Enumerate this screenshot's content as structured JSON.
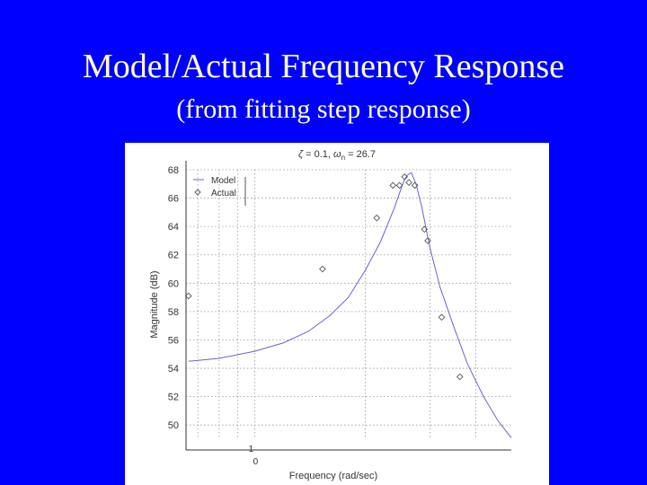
{
  "slide": {
    "title": "Model/Actual Frequency Response",
    "subtitle": "(from fitting step response)"
  },
  "chart_data": {
    "type": "line",
    "title_parts": {
      "zeta": "ζ",
      "zeta_value": "= 0.1,",
      "omega": "ω",
      "omega_sub": "n",
      "omega_value": "= 26.7"
    },
    "xlabel": "Frequency (rad/sec)",
    "ylabel": "Magnitude (dB)",
    "x_tick_labels": [
      {
        "x": 10,
        "label": "1",
        "sub": "0"
      }
    ],
    "yticks": [
      50,
      52,
      54,
      56,
      58,
      60,
      62,
      64,
      66,
      68
    ],
    "xlim": [
      6.5,
      50
    ],
    "ylim": [
      49,
      68
    ],
    "xscale": "log",
    "grid": true,
    "legend": {
      "position": "top-left",
      "entries": [
        {
          "name": "Model",
          "marker": "line"
        },
        {
          "name": "Actual",
          "marker": "diamond"
        }
      ]
    },
    "colors": {
      "model": "#6666cc",
      "actual": "#555555",
      "grid": "#999999"
    },
    "series": [
      {
        "name": "Model",
        "kind": "line",
        "x": [
          6.6,
          8,
          10,
          12,
          14,
          16,
          18,
          20,
          22,
          24,
          25,
          25.5,
          26,
          26.7,
          27.5,
          28.5,
          30,
          32,
          35,
          38,
          42,
          46,
          50
        ],
        "y": [
          54.5,
          54.7,
          55.2,
          55.8,
          56.6,
          57.7,
          59.0,
          60.9,
          62.9,
          65.3,
          66.6,
          67.2,
          67.6,
          67.8,
          67.0,
          65.4,
          62.5,
          59.7,
          56.8,
          54.3,
          52.0,
          50.3,
          49.1
        ]
      },
      {
        "name": "Actual",
        "kind": "scatter",
        "x": [
          6.6,
          15.3,
          21.5,
          23.8,
          24.8,
          25.6,
          26.3,
          27.3,
          29.0,
          29.6,
          32.3,
          36.2
        ],
        "y": [
          59.1,
          61.0,
          64.6,
          66.9,
          66.9,
          67.5,
          67.1,
          66.9,
          63.8,
          63.0,
          57.6,
          53.4
        ]
      }
    ]
  }
}
